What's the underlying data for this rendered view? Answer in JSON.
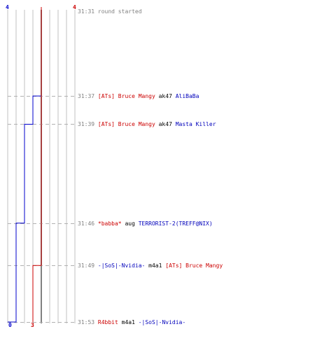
{
  "chart_data": {
    "type": "line",
    "title": "",
    "xlabel": "",
    "ylabel": "",
    "x_axis": "score",
    "y_axis": "time",
    "grid": true,
    "colors": {
      "team_blue": "#0000cc",
      "team_red": "#cc0000",
      "grid": "#c0c0c0",
      "dashed": "#b0b0b0",
      "text_gray": "#808080",
      "center": "#808080"
    },
    "score_range": [
      0,
      8
    ],
    "time_range": [
      "31:31",
      "31:53"
    ],
    "series": [
      {
        "team": "blue",
        "color": "#0000cc",
        "start_label": "4",
        "end_label": "0",
        "steps": [
          {
            "time": "31:31",
            "score": 4
          },
          {
            "time": "31:37",
            "score": 3
          },
          {
            "time": "31:39",
            "score": 2
          },
          {
            "time": "31:46",
            "score": 1
          },
          {
            "time": "31:53",
            "score": 0
          }
        ]
      },
      {
        "team": "red",
        "color": "#cc0000",
        "start_label": "4",
        "end_label": "3",
        "steps": [
          {
            "time": "31:31",
            "score": 4
          },
          {
            "time": "31:49",
            "score": 3
          },
          {
            "time": "31:53",
            "score": 3
          }
        ]
      }
    ],
    "events": [
      {
        "time": "31:31",
        "parts": [
          {
            "text": "round started",
            "color": "gray"
          }
        ]
      },
      {
        "time": "31:37",
        "parts": [
          {
            "text": "[ATs] Bruce Mangy",
            "color": "red"
          },
          {
            "text": "ak47",
            "color": "black"
          },
          {
            "text": "AliBaBa",
            "color": "blue"
          }
        ]
      },
      {
        "time": "31:39",
        "parts": [
          {
            "text": "[ATs] Bruce Mangy",
            "color": "red"
          },
          {
            "text": "ak47",
            "color": "black"
          },
          {
            "text": "Masta Killer",
            "color": "blue"
          }
        ]
      },
      {
        "time": "31:46",
        "parts": [
          {
            "text": "*babba*",
            "color": "red"
          },
          {
            "text": "aug",
            "color": "black"
          },
          {
            "text": "TERRORIST-2(TREFF@NIX)",
            "color": "blue"
          }
        ]
      },
      {
        "time": "31:49",
        "parts": [
          {
            "text": "-|SoS|-Nvidia-",
            "color": "blue"
          },
          {
            "text": "m4a1",
            "color": "black"
          },
          {
            "text": "[ATs] Bruce Mangy",
            "color": "red"
          }
        ]
      },
      {
        "time": "31:53",
        "parts": [
          {
            "text": "R4bbit",
            "color": "red"
          },
          {
            "text": "m4a1",
            "color": "black"
          },
          {
            "text": "-|SoS|-Nvidia-",
            "color": "blue"
          }
        ]
      }
    ]
  }
}
